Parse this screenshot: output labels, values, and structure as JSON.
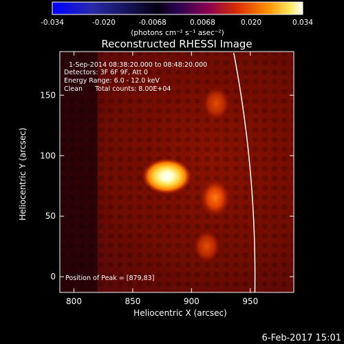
{
  "chart_data": {
    "type": "heatmap",
    "title": "Reconstructed RHESSI Image",
    "xlabel": "Heliocentric X (arcsec)",
    "ylabel": "Heliocentric Y (arcsec)",
    "xlim": [
      788,
      987
    ],
    "ylim": [
      -13,
      186
    ],
    "x_ticks": [
      800,
      850,
      900,
      950
    ],
    "y_ticks": [
      0,
      50,
      100,
      150
    ],
    "colorbar": {
      "range": [
        -0.034,
        0.034
      ],
      "tick_labels": [
        "-0.034",
        "-0.020",
        "-0.0068",
        "0.0068",
        "0.020",
        "0.034"
      ],
      "tick_values": [
        -0.034,
        -0.02,
        -0.0068,
        0.0068,
        0.02,
        0.034
      ],
      "unit_label": "(photons cm⁻² s⁻¹ asec⁻²)",
      "colors": [
        "#0000ff",
        "#2c2ca0",
        "#000000",
        "#3a0060",
        "#8a0050",
        "#d23000",
        "#ff8000",
        "#ffe860",
        "#ffffff"
      ]
    },
    "annotations": [
      "1-Sep-2014 08:38:20.000 to 08:48:20.000",
      "Detectors: 3F 6F 9F, Att 0",
      "Energy Range: 6.0 - 12.0 keV",
      "Clean      Total counts: 8.00E+04"
    ],
    "peak_label": "Position of Peak = [879,83]",
    "peak": {
      "x": 879,
      "y": 83
    },
    "sources": [
      {
        "x": 879,
        "y": 83,
        "intensity": 0.034
      },
      {
        "x": 920,
        "y": 65,
        "intensity": 0.014
      },
      {
        "x": 921,
        "y": 143,
        "intensity": 0.01
      },
      {
        "x": 913,
        "y": 25,
        "intensity": 0.009
      }
    ],
    "limb": {
      "solar_radius_arcsec": 954
    },
    "timestamp": "6-Feb-2017 15:01"
  }
}
